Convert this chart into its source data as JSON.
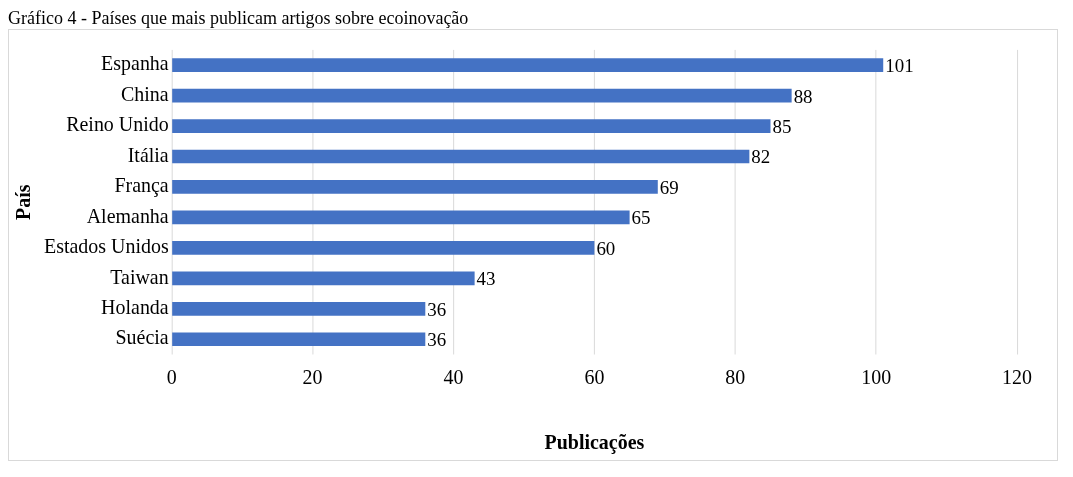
{
  "chart_data": {
    "type": "bar",
    "orientation": "horizontal",
    "title": "Gráfico 4 - Países que mais publicam artigos sobre ecoinovação",
    "xlabel": "Publicações",
    "ylabel": "País",
    "categories": [
      "Espanha",
      "China",
      "Reino Unido",
      "Itália",
      "França",
      "Alemanha",
      "Estados Unidos",
      "Taiwan",
      "Holanda",
      "Suécia"
    ],
    "values": [
      101,
      88,
      85,
      82,
      69,
      65,
      60,
      43,
      36,
      36
    ],
    "color": "#4472c4",
    "xlim": [
      0,
      120
    ],
    "xticks": [
      0,
      20,
      40,
      60,
      80,
      100,
      120
    ],
    "grid": "x",
    "data_labels": true,
    "legend": false
  }
}
